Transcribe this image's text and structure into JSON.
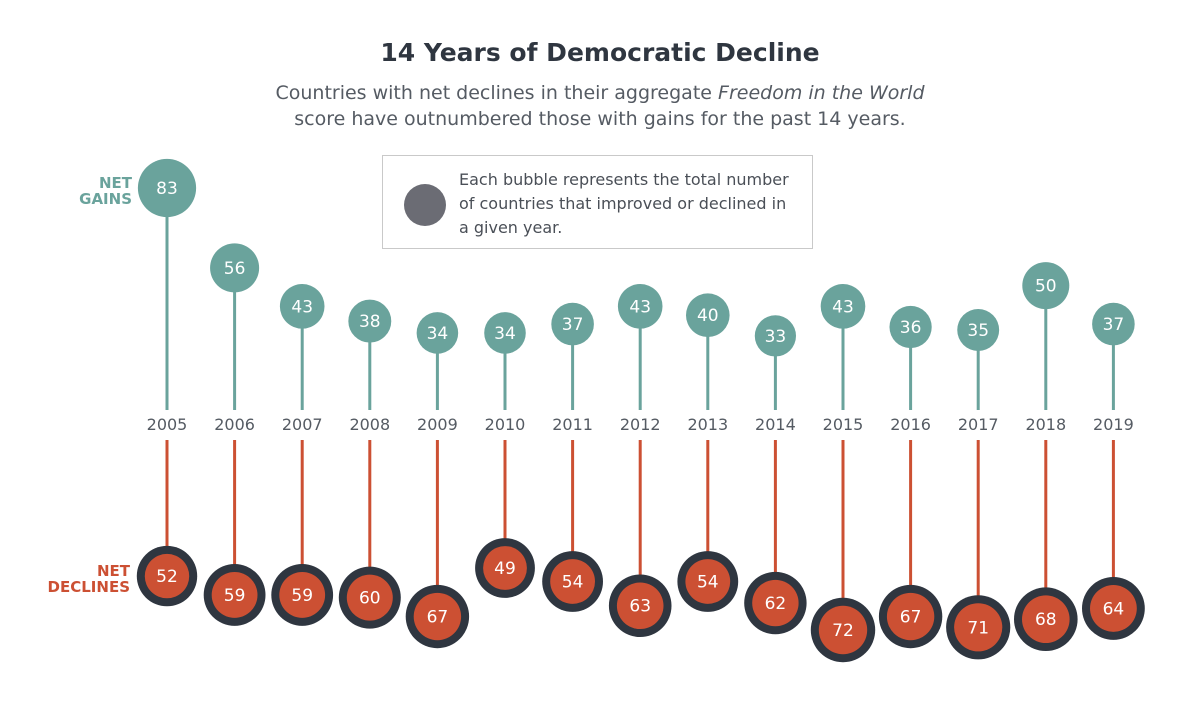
{
  "header": {
    "title": "14 Years of Democratic Decline",
    "subtitle_line1_a": "Countries with net declines in their aggregate ",
    "subtitle_line1_b": "Freedom in the World",
    "subtitle_line2": "score have outnumbered those with gains for the past 14 years."
  },
  "legend": {
    "text": "Each bubble represents the total number of countries that improved or declined in a given year."
  },
  "labels": {
    "gains_line1": "NET",
    "gains_line2": "GAINS",
    "declines_line1": "NET",
    "declines_line2": "DECLINES"
  },
  "colors": {
    "gains": "#6aa39c",
    "declines": "#cc5033",
    "declines_ring": "#2f3640",
    "legend_bubble": "#6b6c74",
    "year_text": "#555b63"
  },
  "chart_data": {
    "type": "bubble-lollipop",
    "title": "14 Years of Democratic Decline",
    "categories": [
      "2005",
      "2006",
      "2007",
      "2008",
      "2009",
      "2010",
      "2011",
      "2012",
      "2013",
      "2014",
      "2015",
      "2016",
      "2017",
      "2018",
      "2019"
    ],
    "series": [
      {
        "name": "NET GAINS",
        "values": [
          83,
          56,
          43,
          38,
          34,
          34,
          37,
          43,
          40,
          33,
          43,
          36,
          35,
          50,
          37
        ]
      },
      {
        "name": "NET DECLINES",
        "values": [
          52,
          59,
          59,
          60,
          67,
          49,
          54,
          63,
          54,
          62,
          72,
          67,
          71,
          68,
          64
        ]
      }
    ],
    "ylim": [
      0,
      90
    ]
  }
}
